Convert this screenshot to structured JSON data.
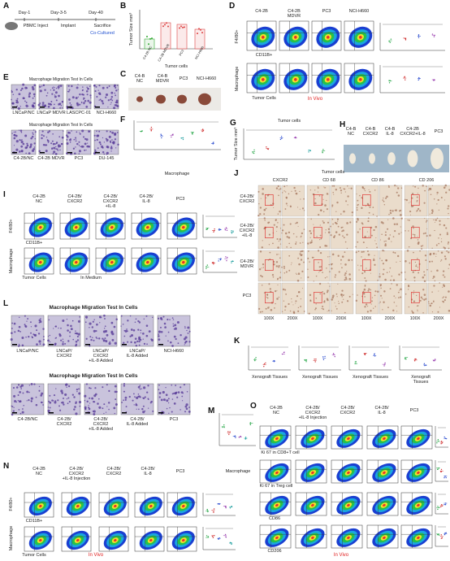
{
  "panels": [
    {
      "letter": "A",
      "labels": [
        "Day-1",
        "Day-3-5",
        "Day-40",
        "PBMC Inject",
        "Implant",
        "Sacrifice",
        "Co-Cultured"
      ]
    },
    {
      "letter": "B",
      "labels": [
        "Tumor Size mm³",
        "C4-2B NC",
        "C4-2B MDVR",
        "PC3",
        "NCI-H660",
        "Tumor cells"
      ]
    },
    {
      "letter": "C",
      "labels": [
        "C4-B\nNC",
        "C4-B\nMDVR",
        "PC3",
        "NCI-H660"
      ]
    },
    {
      "letter": "D",
      "labels": [
        "C4-2B",
        "C4-2B\nMDVR",
        "PC3",
        "NCI-H660",
        "F4/80+",
        "CD11B+",
        "Macrophage",
        "Tumor Cells",
        "In Vivo"
      ]
    },
    {
      "letter": "E",
      "labels": [
        "Macrophage Migration Test In Cells",
        "LNCaP/NC",
        "LNCaP MDVR",
        "LASCPC-01",
        "NCI-H660",
        "Macrophage Migration Test In Cells",
        "C4-2B/NC",
        "C4-2B MDVR",
        "PC3",
        "DU-145"
      ]
    },
    {
      "letter": "F",
      "labels": [
        "Macrophage"
      ]
    },
    {
      "letter": "G",
      "labels": [
        "Tumor cells",
        "Tumor Size mm³"
      ]
    },
    {
      "letter": "H",
      "labels": [
        "C4-B\nNC",
        "C4-B\nCXCR2",
        "C4-B\nIL-8",
        "C4-2B\nCXCR2+IL-8",
        "PC3"
      ]
    },
    {
      "letter": "I",
      "labels": [
        "C4-2B\nNC",
        "C4-2B/\nCXCR2",
        "C4-2B/\nCXCR2\n+IL-8",
        "C4-2B/\nIL-8",
        "PC3",
        "F4/80+",
        "CD11B+",
        "Macrophage",
        "Tumor Cells",
        "In Medium"
      ]
    },
    {
      "letter": "J",
      "labels": [
        "Tumor cells",
        "CXCR2",
        "CD 68",
        "CD 86",
        "CD 206",
        "C4-2B/\nCXCR2",
        "C4-2B/\nCXCR2\n+IL-8",
        "C4-2B/\nMDVR",
        "PC3",
        "100X",
        "200X",
        "100X",
        "200X",
        "100X",
        "200X",
        "100X",
        "200X"
      ]
    },
    {
      "letter": "K",
      "labels": [
        "Xenograft Tissues",
        "Xenograft Tissues",
        "Xenograft Tissues",
        "Xenograft Tissues"
      ]
    },
    {
      "letter": "L",
      "labels": [
        "Macrophage Migration Test In Cells",
        "LNCaP/NC",
        "LNCaP/\nCXCR2",
        "LNCaP/\nCXCR2\n+IL-8 Added",
        "LNCaP/\nIL-8 Added",
        "NCI-H660",
        "Macrophage Migration Test In Cells",
        "C4-2B/NC",
        "C4-2B/\nCXCR2",
        "C4-2B/\nCXCR2\n+IL-8 Added",
        "C4-2B/\nIL-8 Added",
        "PC3"
      ]
    },
    {
      "letter": "M",
      "labels": [
        "Macrophage"
      ]
    },
    {
      "letter": "N",
      "labels": [
        "C4-2B\nNC",
        "C4-2B/\nCXCR2\n+IL-8 Injection",
        "C4-2B/\nCXCR2",
        "C4-2B/\nIL-8",
        "PC3",
        "F4/80+",
        "CD11B+",
        "Macrophage",
        "Tumor Cells",
        "In Vivo"
      ]
    },
    {
      "letter": "O",
      "labels": [
        "C4-2B\nNC",
        "C4-2B/\nCXCR2\n+IL-8 Injection",
        "C4-2B/\nCXCR2",
        "C4-2B/\nIL-8",
        "PC3",
        "Ki 67 in CD8+T cell",
        "Ki 67 in Treg cell",
        "CD86",
        "CD206",
        "In Vivo"
      ]
    }
  ]
}
